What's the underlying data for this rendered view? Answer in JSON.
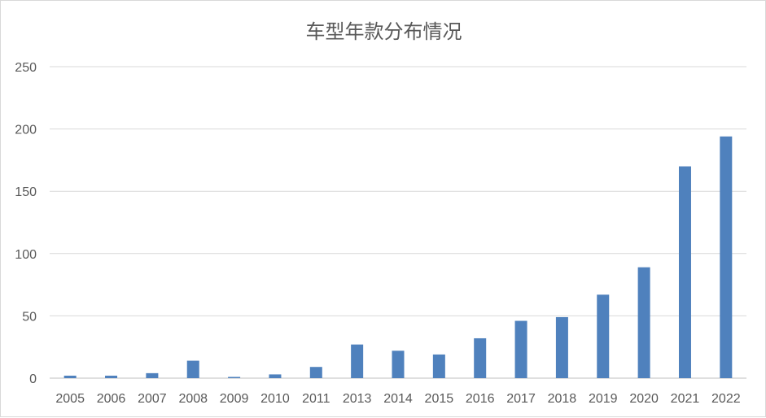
{
  "chart_data": {
    "type": "bar",
    "title": "车型年款分布情况",
    "xlabel": "",
    "ylabel": "",
    "categories": [
      "2005",
      "2006",
      "2007",
      "2008",
      "2009",
      "2010",
      "2011",
      "2013",
      "2014",
      "2015",
      "2016",
      "2017",
      "2018",
      "2019",
      "2020",
      "2021",
      "2022"
    ],
    "values": [
      2,
      2,
      4,
      14,
      1,
      3,
      9,
      27,
      22,
      19,
      32,
      46,
      49,
      67,
      89,
      170,
      194
    ],
    "ylim": [
      0,
      250
    ],
    "yticks": [
      0,
      50,
      100,
      150,
      200,
      250
    ],
    "grid": true,
    "legend": "none",
    "colors": {
      "bar": "#4f81bd",
      "grid": "#d9d9d9",
      "axis": "#bfbfbf",
      "text": "#595959"
    }
  }
}
